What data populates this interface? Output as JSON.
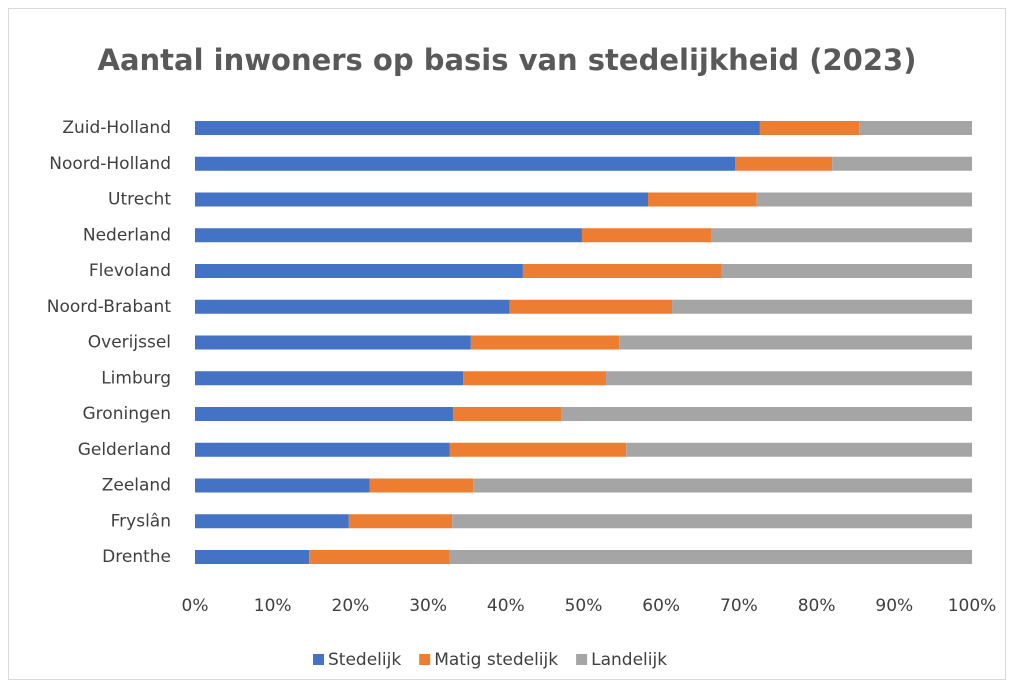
{
  "chart_data": {
    "type": "stacked_bar_horizontal",
    "title": "Aantal inwoners op basis van stedelijkheid (2023)",
    "categories": [
      "Zuid-Holland",
      "Noord-Holland",
      "Utrecht",
      "Nederland",
      "Flevoland",
      "Noord-Brabant",
      "Overijssel",
      "Limburg",
      "Groningen",
      "Gelderland",
      "Zeeland",
      "Fryslân",
      "Drenthe"
    ],
    "series": [
      {
        "name": "Stedelijk",
        "color": "#4472c4",
        "values": [
          72.7,
          69.5,
          58.3,
          49.8,
          42.2,
          40.5,
          35.5,
          34.5,
          33.2,
          32.8,
          22.5,
          19.8,
          14.7
        ]
      },
      {
        "name": "Matig stedelijk",
        "color": "#ed7d31",
        "values": [
          12.8,
          12.5,
          14.0,
          16.7,
          25.6,
          20.9,
          19.1,
          18.4,
          14.0,
          22.7,
          13.3,
          13.3,
          18.1
        ]
      },
      {
        "name": "Landelijk",
        "color": "#a5a5a5",
        "values": [
          14.5,
          18.0,
          27.7,
          33.5,
          32.2,
          38.6,
          45.4,
          47.1,
          52.8,
          44.5,
          64.2,
          66.9,
          67.2
        ]
      }
    ],
    "xlim": [
      0,
      100
    ],
    "xticks": [
      {
        "value": 0,
        "label": "0%"
      },
      {
        "value": 10,
        "label": "10%"
      },
      {
        "value": 20,
        "label": "20%"
      },
      {
        "value": 30,
        "label": "30%"
      },
      {
        "value": 40,
        "label": "40%"
      },
      {
        "value": 50,
        "label": "50%"
      },
      {
        "value": 60,
        "label": "60%"
      },
      {
        "value": 70,
        "label": "70%"
      },
      {
        "value": 80,
        "label": "80%"
      },
      {
        "value": 90,
        "label": "90%"
      },
      {
        "value": 100,
        "label": "100%"
      }
    ],
    "legend": "bottom"
  }
}
